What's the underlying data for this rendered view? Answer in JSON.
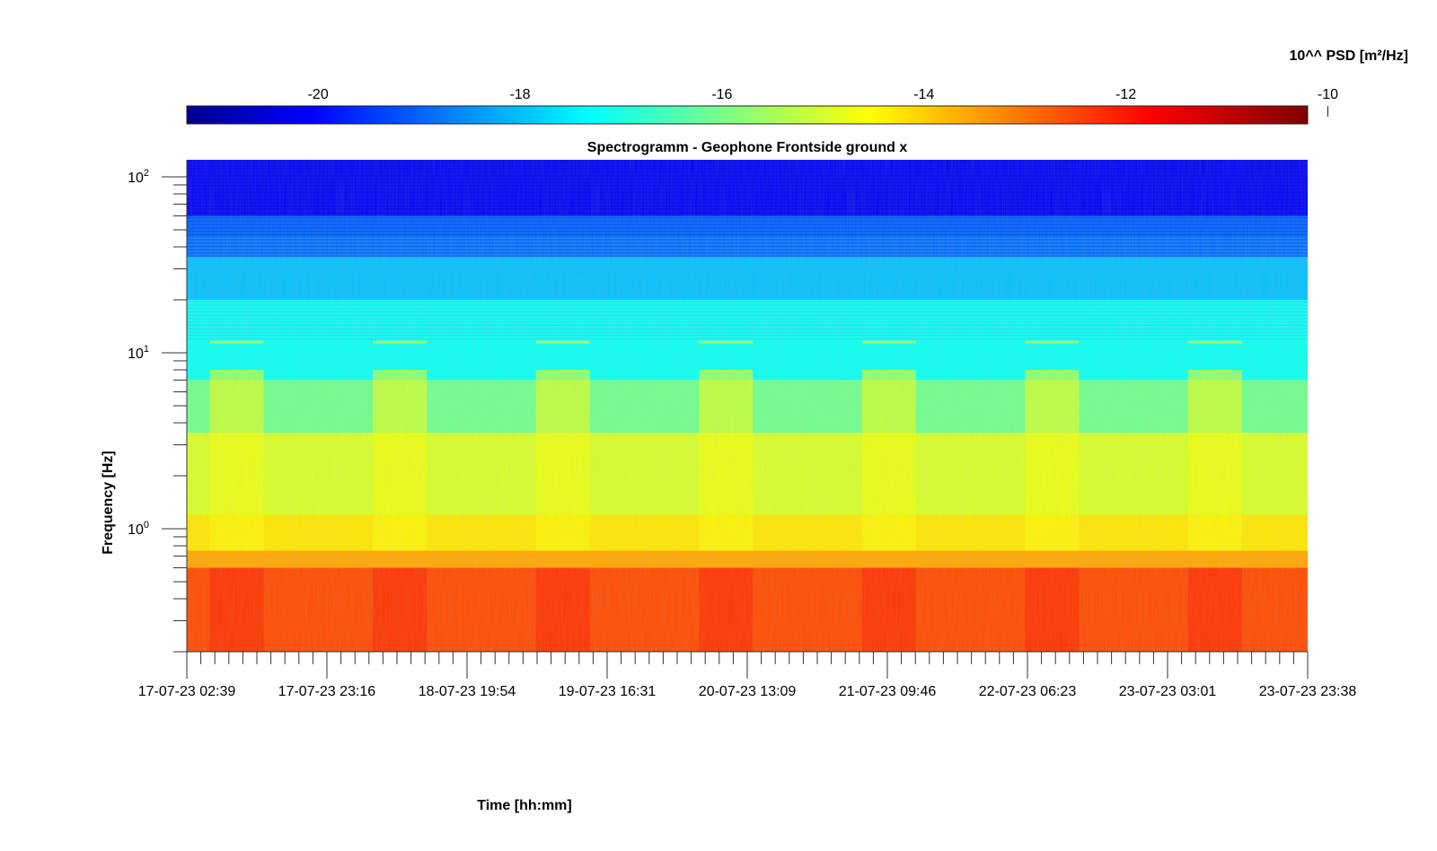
{
  "chart_data": {
    "type": "heatmap",
    "title": "Spectrogramm - Geophone Frontside ground x",
    "xlabel": "Time [hh:mm]",
    "ylabel": "Frequency [Hz]",
    "y_scale": "log",
    "ylim": [
      0.2,
      125
    ],
    "xlim": [
      "17-07-23 02:39",
      "23-07-23 23:38"
    ],
    "x_tick_labels": [
      "17-07-23 02:39",
      "17-07-23 23:16",
      "18-07-23 19:54",
      "19-07-23 16:31",
      "20-07-23 13:09",
      "21-07-23 09:46",
      "22-07-23 06:23",
      "23-07-23 03:01",
      "23-07-23 23:38"
    ],
    "y_ticks": [
      {
        "base": "10",
        "exp": "0",
        "value": 1
      },
      {
        "base": "10",
        "exp": "1",
        "value": 10
      },
      {
        "base": "10",
        "exp": "2",
        "value": 100
      }
    ],
    "colorbar": {
      "label": "10^^ PSD [m²/Hz]",
      "range": [
        -21.3,
        -10.2
      ],
      "ticks": [
        "-20",
        "-18",
        "-16",
        "-14",
        "-12",
        "-10"
      ],
      "tick_values": [
        -20,
        -18,
        -16,
        -14,
        -12,
        -10
      ],
      "colormap": "jet"
    },
    "bands": [
      {
        "f_low": 0.2,
        "f_high": 0.6,
        "psd_log10": -12.4
      },
      {
        "f_low": 0.6,
        "f_high": 0.75,
        "psd_log10": -13.4
      },
      {
        "f_low": 0.75,
        "f_high": 1.2,
        "psd_log10": -14.1
      },
      {
        "f_low": 1.2,
        "f_high": 3.5,
        "psd_log10": -14.8
      },
      {
        "f_low": 3.5,
        "f_high": 7,
        "psd_log10": -15.9
      },
      {
        "f_low": 7,
        "f_high": 20,
        "psd_log10": -17.0
      },
      {
        "f_low": 20,
        "f_high": 35,
        "psd_log10": -17.8
      },
      {
        "f_low": 35,
        "f_high": 60,
        "psd_log10": -18.8
      },
      {
        "f_low": 60,
        "f_high": 125,
        "psd_log10": -20.0
      }
    ],
    "daytime_activity_hours": [
      "17-07-23 10:00",
      "18-07-23 10:00",
      "19-07-23 10:00",
      "20-07-23 10:00",
      "21-07-23 10:00",
      "22-07-23 10:00",
      "23-07-23 10:00"
    ]
  }
}
